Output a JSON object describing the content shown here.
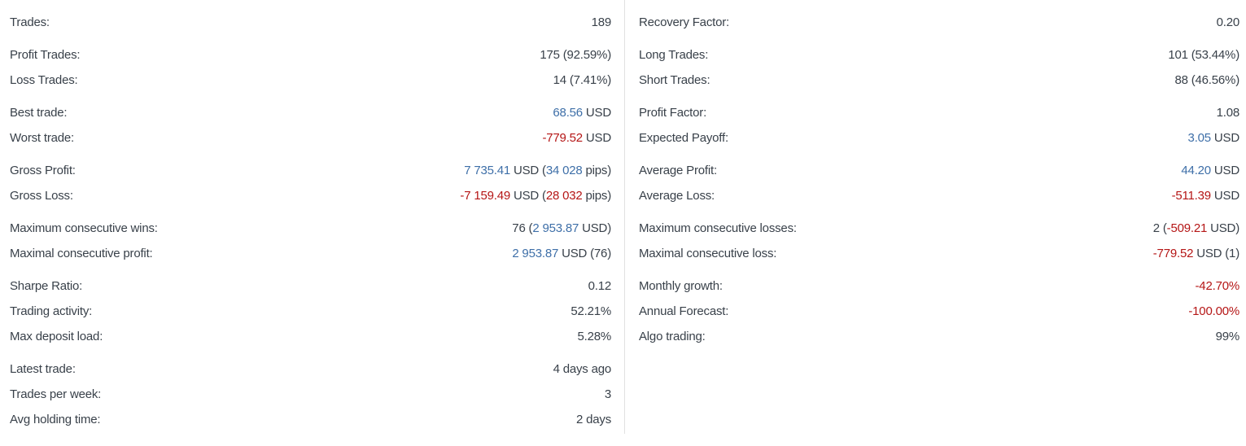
{
  "colors": {
    "text": "#39414a",
    "positive_blue": "#3e6fa8",
    "negative_red": "#b51616",
    "divider": "#e1e1e1",
    "background": "#ffffff"
  },
  "columns": [
    {
      "groups": [
        [
          {
            "label": "Trades:",
            "segments": [
              {
                "t": "189"
              }
            ]
          }
        ],
        [
          {
            "label": "Profit Trades:",
            "segments": [
              {
                "t": "175 (92.59%)"
              }
            ]
          },
          {
            "label": "Loss Trades:",
            "segments": [
              {
                "t": "14 (7.41%)"
              }
            ]
          }
        ],
        [
          {
            "label": "Best trade:",
            "segments": [
              {
                "t": "68.56",
                "c": "blue"
              },
              {
                "t": " USD"
              }
            ]
          },
          {
            "label": "Worst trade:",
            "segments": [
              {
                "t": "-779.52",
                "c": "red"
              },
              {
                "t": " USD"
              }
            ]
          }
        ],
        [
          {
            "label": "Gross Profit:",
            "segments": [
              {
                "t": "7 735.41",
                "c": "blue"
              },
              {
                "t": " USD ("
              },
              {
                "t": "34 028",
                "c": "blue"
              },
              {
                "t": " pips)"
              }
            ]
          },
          {
            "label": "Gross Loss:",
            "segments": [
              {
                "t": "-7 159.49",
                "c": "red"
              },
              {
                "t": " USD ("
              },
              {
                "t": "28 032",
                "c": "red"
              },
              {
                "t": " pips)"
              }
            ]
          }
        ],
        [
          {
            "label": "Maximum consecutive wins:",
            "segments": [
              {
                "t": "76 ("
              },
              {
                "t": "2 953.87",
                "c": "blue"
              },
              {
                "t": " USD)"
              }
            ]
          },
          {
            "label": "Maximal consecutive profit:",
            "segments": [
              {
                "t": "2 953.87",
                "c": "blue"
              },
              {
                "t": " USD (76)"
              }
            ]
          }
        ],
        [
          {
            "label": "Sharpe Ratio:",
            "segments": [
              {
                "t": "0.12"
              }
            ]
          },
          {
            "label": "Trading activity:",
            "segments": [
              {
                "t": "52.21%"
              }
            ]
          },
          {
            "label": "Max deposit load:",
            "segments": [
              {
                "t": "5.28%"
              }
            ]
          }
        ],
        [
          {
            "label": "Latest trade:",
            "segments": [
              {
                "t": "4 days ago"
              }
            ]
          },
          {
            "label": "Trades per week:",
            "segments": [
              {
                "t": "3"
              }
            ]
          },
          {
            "label": "Avg holding time:",
            "segments": [
              {
                "t": "2 days"
              }
            ]
          }
        ]
      ]
    },
    {
      "groups": [
        [
          {
            "label": "Recovery Factor:",
            "segments": [
              {
                "t": "0.20"
              }
            ]
          }
        ],
        [
          {
            "label": "Long Trades:",
            "segments": [
              {
                "t": "101 (53.44%)"
              }
            ]
          },
          {
            "label": "Short Trades:",
            "segments": [
              {
                "t": "88 (46.56%)"
              }
            ]
          }
        ],
        [
          {
            "label": "Profit Factor:",
            "segments": [
              {
                "t": "1.08"
              }
            ]
          },
          {
            "label": "Expected Payoff:",
            "segments": [
              {
                "t": "3.05",
                "c": "blue"
              },
              {
                "t": " USD"
              }
            ]
          }
        ],
        [
          {
            "label": "Average Profit:",
            "segments": [
              {
                "t": "44.20",
                "c": "blue"
              },
              {
                "t": " USD"
              }
            ]
          },
          {
            "label": "Average Loss:",
            "segments": [
              {
                "t": "-511.39",
                "c": "red"
              },
              {
                "t": " USD"
              }
            ]
          }
        ],
        [
          {
            "label": "Maximum consecutive losses:",
            "segments": [
              {
                "t": "2 ("
              },
              {
                "t": "-509.21",
                "c": "red"
              },
              {
                "t": " USD)"
              }
            ]
          },
          {
            "label": "Maximal consecutive loss:",
            "segments": [
              {
                "t": "-779.52",
                "c": "red"
              },
              {
                "t": " USD (1)"
              }
            ]
          }
        ],
        [
          {
            "label": "Monthly growth:",
            "segments": [
              {
                "t": "-42.70%",
                "c": "red"
              }
            ]
          },
          {
            "label": "Annual Forecast:",
            "segments": [
              {
                "t": "-100.00%",
                "c": "red"
              }
            ]
          },
          {
            "label": "Algo trading:",
            "segments": [
              {
                "t": "99%"
              }
            ]
          }
        ]
      ]
    }
  ]
}
